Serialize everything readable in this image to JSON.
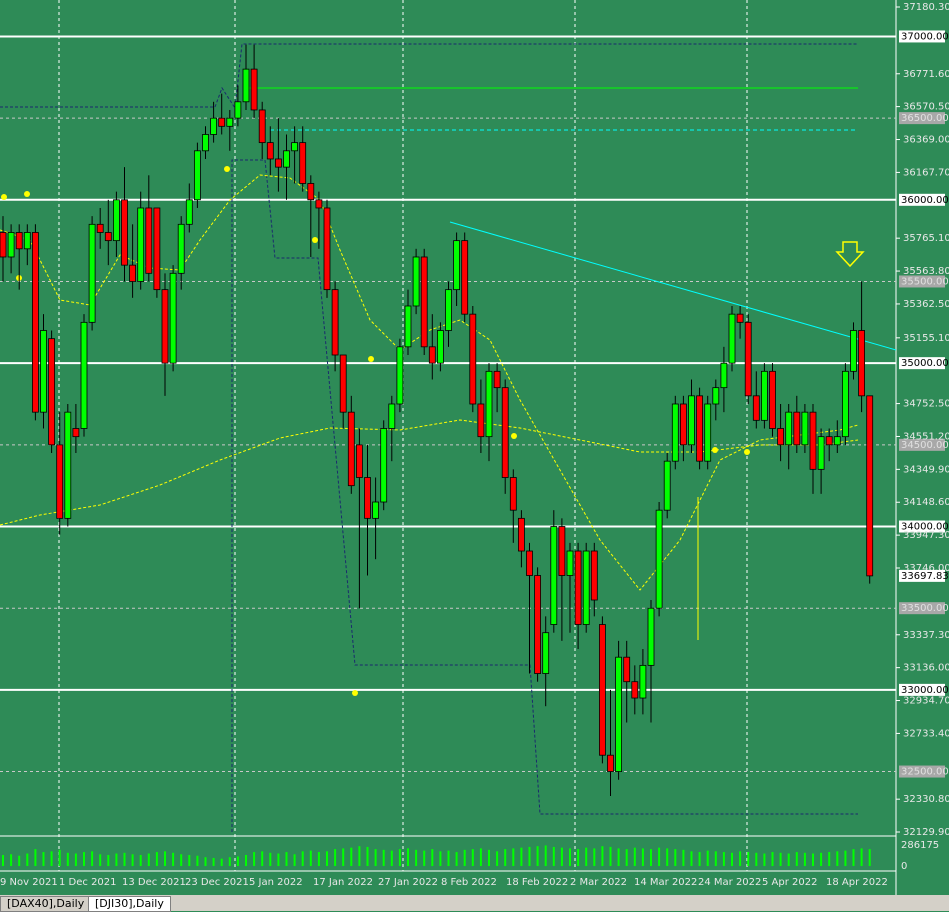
{
  "chart_data": {
    "type": "candlestick",
    "ylim": [
      32129.9,
      37180.3
    ],
    "yticks": [
      {
        "value": 37180.3,
        "label": "37180.30"
      },
      {
        "value": 36771.6,
        "label": "36771.60"
      },
      {
        "value": 36570.5,
        "label": "36570.50"
      },
      {
        "value": 36369,
        "label": "36369.00"
      },
      {
        "value": 36167.7,
        "label": "36167.70"
      },
      {
        "value": 35765.1,
        "label": "35765.10"
      },
      {
        "value": 35563.8,
        "label": "35563.80"
      },
      {
        "value": 35362.5,
        "label": "35362.50"
      },
      {
        "value": 35155.1,
        "label": "35155.10"
      },
      {
        "value": 34752.5,
        "label": "34752.50"
      },
      {
        "value": 34551.2,
        "label": "34551.20"
      },
      {
        "value": 34349.9,
        "label": "34349.90"
      },
      {
        "value": 34148.6,
        "label": "34148.60"
      },
      {
        "value": 33947.3,
        "label": "33947.30"
      },
      {
        "value": 33746,
        "label": "33746.00"
      },
      {
        "value": 33337.3,
        "label": "33337.30"
      },
      {
        "value": 33136,
        "label": "33136.00"
      },
      {
        "value": 32934.7,
        "label": "32934.70"
      },
      {
        "value": 32733.4,
        "label": "32733.40"
      },
      {
        "value": 32330.8,
        "label": "32330.80"
      },
      {
        "value": 32129.9,
        "label": "32129.90"
      }
    ],
    "levels": [
      {
        "value": 37000,
        "label": "37000.00"
      },
      {
        "value": 36000,
        "label": "36000.00"
      },
      {
        "value": 35000,
        "label": "35000.00"
      },
      {
        "value": 34000,
        "label": "34000.00"
      },
      {
        "value": 33000,
        "label": "33000.00"
      }
    ],
    "dashed_levels": [
      {
        "value": 36500,
        "label": "36500.00"
      },
      {
        "value": 35500,
        "label": "35500.00"
      },
      {
        "value": 34500,
        "label": "34500.00"
      },
      {
        "value": 33500,
        "label": "33500.00"
      },
      {
        "value": 32500,
        "label": "32500.00"
      }
    ],
    "current_price": {
      "value": 33697.83,
      "label": "33697.83"
    },
    "y2lim": [
      0,
      286175
    ],
    "y2ticks": [
      286175,
      0
    ],
    "x_labels": [
      "9 Nov 2021",
      "1 Dec 2021",
      "13 Dec 2021",
      "23 Dec 2021",
      "5 Jan 2022",
      "17 Jan 2022",
      "27 Jan 2022",
      "8 Feb 2022",
      "18 Feb 2022",
      "2 Mar 2022",
      "14 Mar 2022",
      "24 Mar 2022",
      "5 Apr 2022",
      "18 Apr 2022"
    ],
    "candles": [
      [
        35800,
        35900,
        35500,
        35650
      ],
      [
        35650,
        35850,
        35550,
        35800
      ],
      [
        35800,
        35850,
        35450,
        35700
      ],
      [
        35700,
        35850,
        35600,
        35800
      ],
      [
        35800,
        35850,
        34650,
        34700
      ],
      [
        34700,
        35300,
        34600,
        35200
      ],
      [
        35150,
        35200,
        34450,
        34500
      ],
      [
        34500,
        34700,
        33950,
        34050
      ],
      [
        34050,
        34750,
        34000,
        34700
      ],
      [
        34600,
        34750,
        34450,
        34550
      ],
      [
        34600,
        35300,
        34550,
        35250
      ],
      [
        35250,
        35900,
        35200,
        35850
      ],
      [
        35850,
        35950,
        35700,
        35800
      ],
      [
        35800,
        36000,
        35600,
        35750
      ],
      [
        35750,
        36050,
        35650,
        36000
      ],
      [
        36000,
        36200,
        35500,
        35600
      ],
      [
        35600,
        35850,
        35400,
        35500
      ],
      [
        35500,
        36050,
        35450,
        35950
      ],
      [
        35950,
        36150,
        35500,
        35550
      ],
      [
        35950,
        35950,
        35400,
        35450
      ],
      [
        35450,
        35550,
        34800,
        35000
      ],
      [
        35000,
        35600,
        34950,
        35550
      ],
      [
        35550,
        35900,
        35450,
        35850
      ],
      [
        35850,
        36100,
        35800,
        36000
      ],
      [
        36000,
        36350,
        35950,
        36300
      ],
      [
        36300,
        36450,
        36250,
        36400
      ],
      [
        36400,
        36600,
        36350,
        36500
      ],
      [
        36500,
        36650,
        36400,
        36450
      ],
      [
        36450,
        36550,
        36300,
        36500
      ],
      [
        36500,
        36700,
        36450,
        36600
      ],
      [
        36600,
        36950,
        36550,
        36800
      ],
      [
        36800,
        36950,
        36500,
        36550
      ],
      [
        36550,
        36600,
        36250,
        36350
      ],
      [
        36350,
        36450,
        36150,
        36250
      ],
      [
        36250,
        36500,
        36050,
        36200
      ],
      [
        36200,
        36400,
        36000,
        36300
      ],
      [
        36300,
        36450,
        36100,
        36350
      ],
      [
        36350,
        36450,
        36050,
        36100
      ],
      [
        36100,
        36150,
        35650,
        36000
      ],
      [
        36000,
        36050,
        35700,
        35950
      ],
      [
        35950,
        36000,
        35400,
        35450
      ],
      [
        35450,
        35500,
        34950,
        35050
      ],
      [
        35050,
        35050,
        34600,
        34700
      ],
      [
        34700,
        34800,
        34200,
        34250
      ],
      [
        34500,
        34600,
        33500,
        34300
      ],
      [
        34300,
        34500,
        33700,
        34050
      ],
      [
        34050,
        34300,
        33800,
        34150
      ],
      [
        34150,
        34650,
        34100,
        34600
      ],
      [
        34600,
        34800,
        34400,
        34750
      ],
      [
        34750,
        35150,
        34700,
        35100
      ],
      [
        35100,
        35450,
        35050,
        35350
      ],
      [
        35350,
        35700,
        35300,
        35650
      ],
      [
        35650,
        35700,
        35050,
        35100
      ],
      [
        35100,
        35300,
        34900,
        35000
      ],
      [
        35000,
        35250,
        34950,
        35200
      ],
      [
        35200,
        35500,
        35100,
        35450
      ],
      [
        35450,
        35800,
        35350,
        35750
      ],
      [
        35750,
        35800,
        35250,
        35300
      ],
      [
        35300,
        35350,
        34700,
        34750
      ],
      [
        34750,
        34900,
        34450,
        34550
      ],
      [
        34550,
        35000,
        34400,
        34950
      ],
      [
        34950,
        35000,
        34700,
        34850
      ],
      [
        34850,
        34900,
        34200,
        34300
      ],
      [
        34300,
        34350,
        33900,
        34100
      ],
      [
        34050,
        34100,
        33750,
        33850
      ],
      [
        33850,
        33900,
        33100,
        33700
      ],
      [
        33700,
        33750,
        33050,
        33100
      ],
      [
        33100,
        33450,
        32900,
        33350
      ],
      [
        33400,
        34100,
        33350,
        34000
      ],
      [
        34000,
        34050,
        33300,
        33700
      ],
      [
        33700,
        33900,
        33350,
        33850
      ],
      [
        33850,
        33900,
        33250,
        33400
      ],
      [
        33400,
        33900,
        33350,
        33850
      ],
      [
        33850,
        33900,
        33450,
        33550
      ],
      [
        33400,
        33450,
        32550,
        32600
      ],
      [
        32600,
        33000,
        32350,
        32500
      ],
      [
        32500,
        33300,
        32450,
        33200
      ],
      [
        33200,
        33300,
        32800,
        33050
      ],
      [
        33050,
        33150,
        32850,
        32950
      ],
      [
        32950,
        33250,
        32850,
        33150
      ],
      [
        33150,
        33550,
        32800,
        33500
      ],
      [
        33500,
        34150,
        33450,
        34100
      ],
      [
        34100,
        34450,
        34050,
        34400
      ],
      [
        34400,
        34800,
        34350,
        34750
      ],
      [
        34750,
        34800,
        34400,
        34500
      ],
      [
        34500,
        34900,
        34450,
        34800
      ],
      [
        34800,
        34850,
        34350,
        34400
      ],
      [
        34400,
        34800,
        34350,
        34750
      ],
      [
        34750,
        34900,
        34650,
        34850
      ],
      [
        34850,
        35100,
        34700,
        35000
      ],
      [
        35000,
        35350,
        34950,
        35300
      ],
      [
        35300,
        35350,
        35150,
        35250
      ],
      [
        35250,
        35300,
        34750,
        34800
      ],
      [
        34800,
        34950,
        34600,
        34650
      ],
      [
        34650,
        35000,
        34600,
        34950
      ],
      [
        34950,
        35000,
        34550,
        34600
      ],
      [
        34600,
        34750,
        34400,
        34500
      ],
      [
        34500,
        34750,
        34350,
        34700
      ],
      [
        34700,
        34800,
        34450,
        34500
      ],
      [
        34500,
        34750,
        34450,
        34700
      ],
      [
        34700,
        34750,
        34200,
        34350
      ],
      [
        34350,
        34600,
        34200,
        34550
      ],
      [
        34550,
        34600,
        34400,
        34500
      ],
      [
        34500,
        34650,
        34450,
        34550
      ],
      [
        34550,
        35000,
        34500,
        34950
      ],
      [
        34950,
        35250,
        34900,
        35200
      ],
      [
        35200,
        35500,
        34700,
        34800
      ],
      [
        34800,
        34800,
        33650,
        33697.83
      ]
    ],
    "volumes": [
      150000,
      160000,
      140000,
      170000,
      230000,
      190000,
      200000,
      220000,
      180000,
      170000,
      190000,
      200000,
      160000,
      150000,
      170000,
      180000,
      160000,
      150000,
      170000,
      190000,
      200000,
      180000,
      160000,
      150000,
      140000,
      120000,
      110000,
      100000,
      120000,
      130000,
      150000,
      190000,
      200000,
      180000,
      170000,
      190000,
      160000,
      200000,
      210000,
      190000,
      200000,
      230000,
      240000,
      250000,
      270000,
      260000,
      230000,
      220000,
      210000,
      230000,
      240000,
      220000,
      210000,
      230000,
      200000,
      210000,
      190000,
      220000,
      230000,
      240000,
      220000,
      200000,
      230000,
      240000,
      250000,
      260000,
      270000,
      280000,
      260000,
      250000,
      240000,
      230000,
      250000,
      240000,
      270000,
      260000,
      240000,
      230000,
      250000,
      240000,
      230000,
      250000,
      240000,
      230000,
      220000,
      200000,
      190000,
      210000,
      200000,
      190000,
      180000,
      200000,
      190000,
      180000,
      170000,
      190000,
      180000,
      170000,
      190000,
      180000,
      170000,
      180000,
      190000,
      200000,
      210000,
      230000,
      240000,
      230000
    ]
  },
  "tabs": [
    "[DAX40],Daily",
    "[DJI30],Daily"
  ]
}
